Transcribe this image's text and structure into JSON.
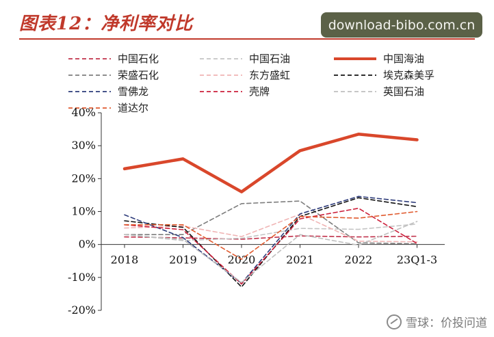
{
  "title": "图表12：净利率对比",
  "watermark_top": "download-bibo.com.cn",
  "watermark_bottom": "雪球：价投问道",
  "colors": {
    "title": "#c0392b",
    "cnooc": "#d9472b"
  },
  "chart_data": {
    "type": "line",
    "title": "图表12：净利率对比",
    "xlabel": "",
    "ylabel": "",
    "categories": [
      "2018",
      "2019",
      "2020",
      "2021",
      "2022",
      "23Q1-3"
    ],
    "y_ticks": [
      "40%",
      "30%",
      "20%",
      "10%",
      "0%",
      "-10%",
      "-20%"
    ],
    "ylim": [
      -20,
      40
    ],
    "legend_placement": "top",
    "series": [
      {
        "name": "中国石化",
        "color": "#c0304a",
        "dash": "dash",
        "width": 1.6,
        "values": [
          2.3,
          2.0,
          1.6,
          2.6,
          2.3,
          2.5
        ]
      },
      {
        "name": "中国石油",
        "color": "#c4c4c4",
        "dash": "dash",
        "width": 1.6,
        "values": [
          3.0,
          1.2,
          1.9,
          4.9,
          4.6,
          6.2
        ]
      },
      {
        "name": "中国海油",
        "color": "#d9472b",
        "dash": "solid",
        "width": 4.5,
        "values": [
          23.0,
          26.0,
          16.0,
          28.5,
          33.5,
          31.8
        ]
      },
      {
        "name": "荣盛石化",
        "color": "#7d7d7d",
        "dash": "dash",
        "width": 1.6,
        "values": [
          3.0,
          3.0,
          12.4,
          13.2,
          0.5,
          0.2
        ]
      },
      {
        "name": "东方盛虹",
        "color": "#f0b4b4",
        "dash": "dash",
        "width": 1.6,
        "values": [
          5.0,
          5.6,
          2.4,
          9.2,
          1.0,
          0.8
        ]
      },
      {
        "name": "埃克森美孚",
        "color": "#111111",
        "dash": "dash",
        "width": 1.6,
        "values": [
          7.2,
          5.2,
          -12.9,
          8.5,
          14.2,
          11.5
        ]
      },
      {
        "name": "雪佛龙",
        "color": "#2d3b7a",
        "dash": "dash",
        "width": 1.6,
        "values": [
          9.0,
          2.1,
          -11.8,
          9.3,
          14.6,
          12.7
        ]
      },
      {
        "name": "壳牌",
        "color": "#cc1f3a",
        "dash": "dash",
        "width": 1.6,
        "values": [
          6.0,
          4.5,
          -12.0,
          7.8,
          11.0,
          0.3
        ]
      },
      {
        "name": "英国石油",
        "color": "#bfbfbf",
        "dash": "dash",
        "width": 1.6,
        "values": [
          3.0,
          1.5,
          -11.5,
          3.0,
          -0.2,
          7.0
        ]
      },
      {
        "name": "道达尔",
        "color": "#e05a2e",
        "dash": "dash",
        "width": 1.6,
        "values": [
          6.0,
          6.0,
          -4.5,
          8.5,
          8.0,
          10.0
        ]
      }
    ]
  }
}
